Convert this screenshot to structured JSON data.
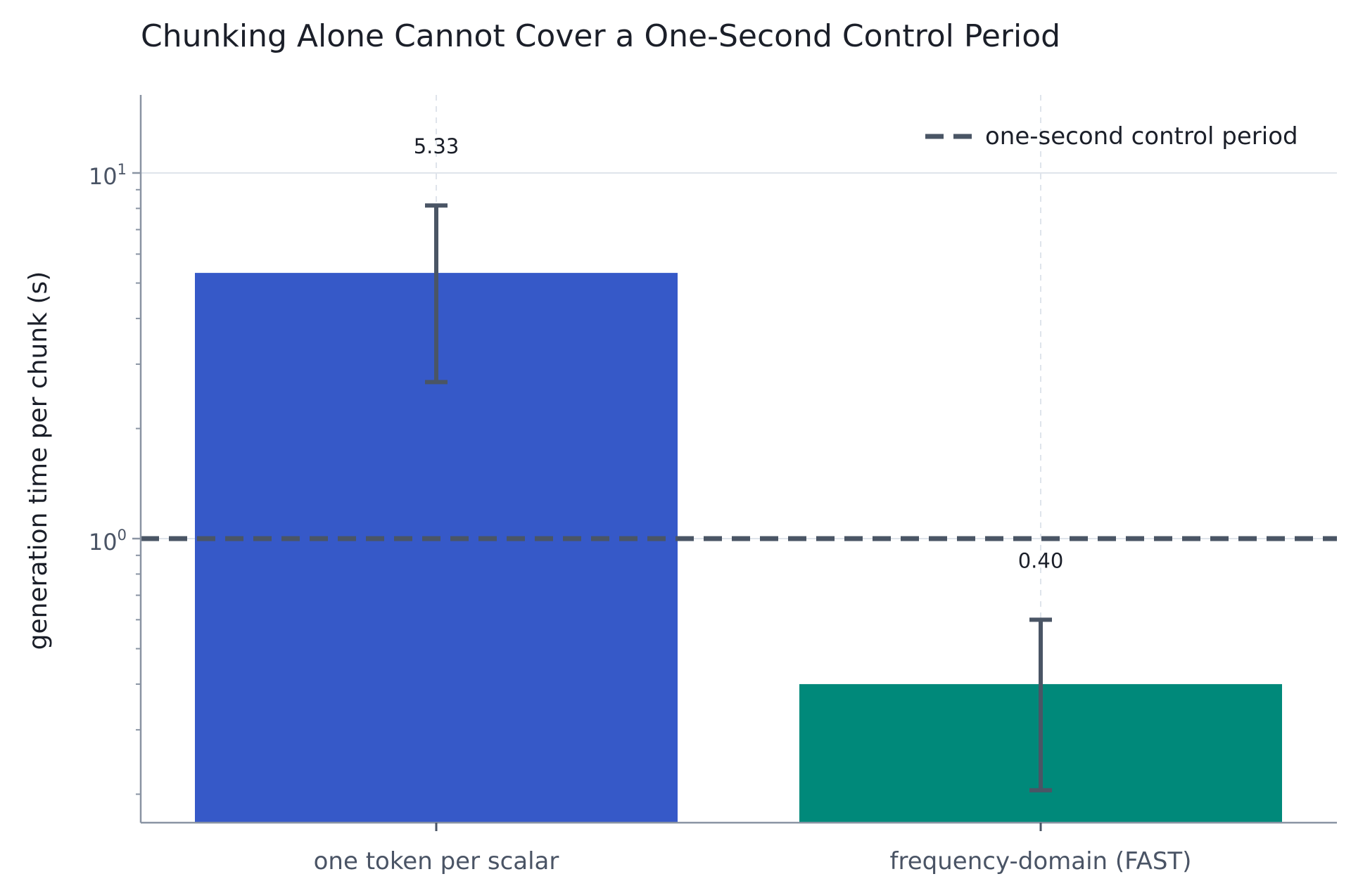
{
  "chart_data": {
    "type": "bar",
    "title": "Chunking Alone Cannot Cover a One-Second Control Period",
    "xlabel": "",
    "ylabel": "generation time per chunk (s)",
    "yscale": "log",
    "ylim": [
      0.18,
      16
    ],
    "yticks": [
      {
        "value": 1,
        "base": "10",
        "exp": "0"
      },
      {
        "value": 10,
        "base": "10",
        "exp": "1"
      }
    ],
    "categories": [
      "one token per scalar",
      "frequency-domain (FAST)"
    ],
    "values": [
      5.33,
      0.4
    ],
    "value_labels": [
      "5.33",
      "0.40"
    ],
    "error_low": [
      2.68,
      0.205
    ],
    "error_high": [
      8.15,
      0.6
    ],
    "colors": [
      "#3659c8",
      "#00897a"
    ],
    "reference_line": {
      "y": 1.0,
      "label": "one-second control period",
      "style": "dashed",
      "color": "#4a5565"
    },
    "legend_position": "top-right",
    "grid": {
      "y": true,
      "x": true,
      "x_style": "dashed"
    }
  }
}
